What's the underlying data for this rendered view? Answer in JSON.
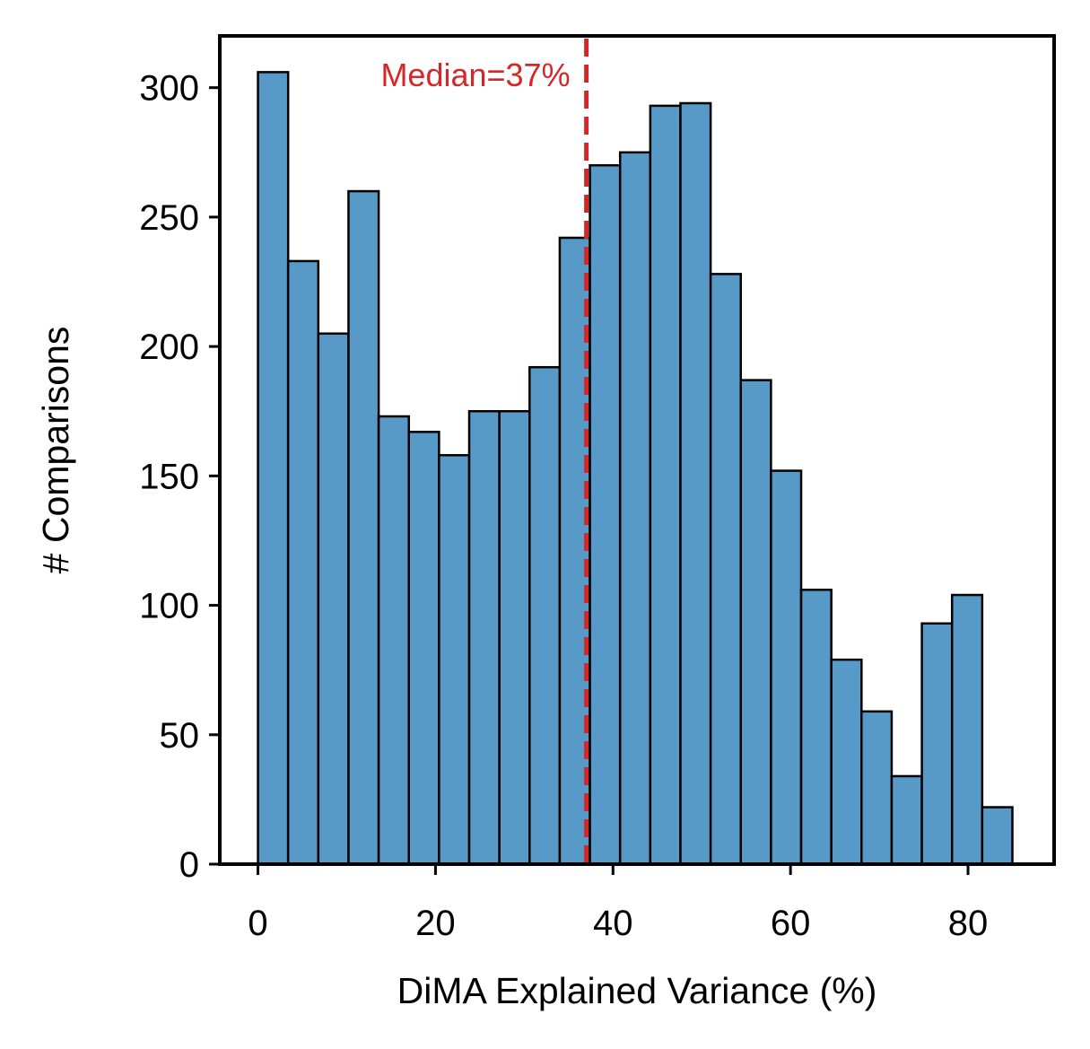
{
  "chart_data": {
    "type": "bar",
    "subtype": "histogram",
    "title": "",
    "xlabel": "DiMA Explained Variance (%)",
    "ylabel": "# Comparisons",
    "xlim": [
      -4.3,
      89.7
    ],
    "ylim": [
      0,
      320
    ],
    "x_ticks": [
      0,
      20,
      40,
      60,
      80
    ],
    "y_ticks": [
      0,
      50,
      100,
      150,
      200,
      250,
      300
    ],
    "bin_start": 0,
    "bin_width": 3.4,
    "bin_count": 25,
    "values": [
      306,
      233,
      205,
      260,
      173,
      167,
      158,
      175,
      175,
      192,
      242,
      270,
      275,
      293,
      294,
      228,
      187,
      152,
      106,
      79,
      59,
      34,
      93,
      104,
      22
    ],
    "bar_color": "#5799c7",
    "bar_edge_color": "#000000",
    "median": {
      "value": 37,
      "label": "Median=37%",
      "color": "#d62728",
      "line_style": "dashed"
    },
    "grid": false,
    "legend": "none"
  }
}
